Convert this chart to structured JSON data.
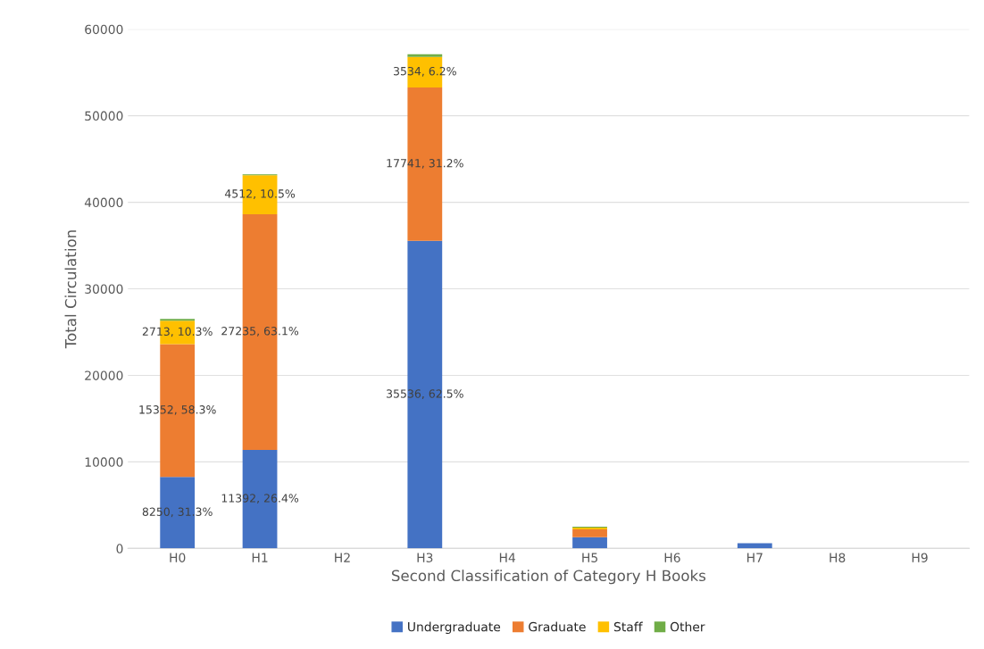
{
  "chart_data": {
    "type": "bar",
    "stacked": true,
    "xlabel": "Second Classification of Category H Books",
    "ylabel": "Total Circulation",
    "categories": [
      "H0",
      "H1",
      "H2",
      "H3",
      "H4",
      "H5",
      "H6",
      "H7",
      "H8",
      "H9"
    ],
    "series": [
      {
        "name": "Undergraduate",
        "color": "#4472c4",
        "values": [
          8250,
          11392,
          0,
          35536,
          0,
          1300,
          0,
          600,
          0,
          0
        ],
        "value_labels": [
          "8250, 31.3%",
          "11392, 26.4%",
          null,
          "35536, 62.5%",
          null,
          null,
          null,
          null,
          null,
          null
        ]
      },
      {
        "name": "Graduate",
        "color": "#ed7d31",
        "values": [
          15352,
          27235,
          0,
          17741,
          0,
          900,
          0,
          0,
          0,
          0
        ],
        "value_labels": [
          "15352, 58.3%",
          "27235, 63.1%",
          null,
          "17741, 31.2%",
          null,
          null,
          null,
          null,
          null,
          null
        ]
      },
      {
        "name": "Staff",
        "color": "#ffc000",
        "values": [
          2713,
          4512,
          0,
          3534,
          0,
          200,
          0,
          0,
          0,
          0
        ],
        "value_labels": [
          "2713, 10.3%",
          "4512, 10.5%",
          null,
          "3534, 6.2%",
          null,
          null,
          null,
          null,
          null,
          null
        ]
      },
      {
        "name": "Other",
        "color": "#70ad47",
        "values": [
          200,
          100,
          0,
          300,
          0,
          100,
          0,
          0,
          0,
          0
        ]
      }
    ],
    "ylim": [
      0,
      60000
    ],
    "yticks": [
      0,
      10000,
      20000,
      30000,
      40000,
      50000,
      60000
    ],
    "grid": "y",
    "legend": "bottom"
  }
}
